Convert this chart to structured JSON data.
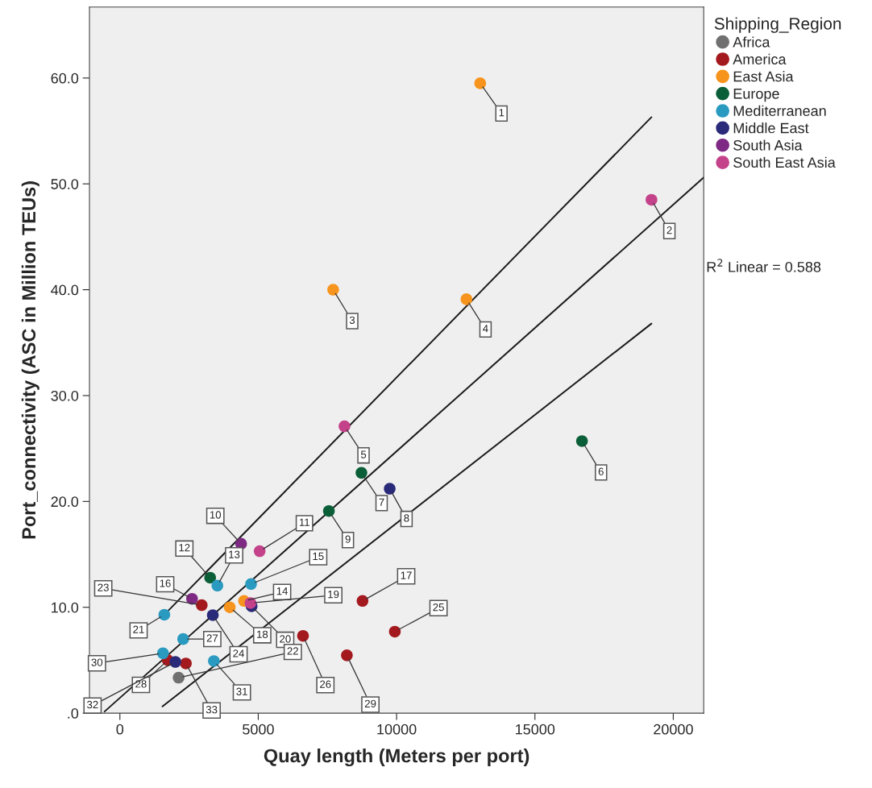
{
  "chart_data": {
    "type": "scatter",
    "xlabel": "Quay length (Meters per port)",
    "ylabel": "Port_connectivity (ASC in Million TEUs)",
    "legend_title": "Shipping_Region",
    "xlim": [
      -1100,
      21100
    ],
    "xticks": [
      0,
      5000,
      10000,
      15000,
      20000
    ],
    "ylim": [
      0,
      66.7
    ],
    "yticks": [
      {
        "value": 0,
        "label": ".0"
      },
      {
        "value": 10,
        "label": "10.0"
      },
      {
        "value": 20,
        "label": "20.0"
      },
      {
        "value": 30,
        "label": "30.0"
      },
      {
        "value": 40,
        "label": "40.0"
      },
      {
        "value": 50,
        "label": "50.0"
      },
      {
        "value": 60,
        "label": "60.0"
      }
    ],
    "grid": false,
    "legend": "right",
    "marker": "circle",
    "series": [
      {
        "name": "Africa",
        "color": "#707070",
        "x": [
          2122
        ],
        "values": [
          3.35
        ]
      },
      {
        "name": "America",
        "color": "#a3191e",
        "x": [
          8769,
          2958,
          9937,
          6618,
          1732,
          8204,
          2385
        ],
        "values": [
          10.6,
          10.2,
          7.7,
          7.3,
          5.0,
          5.46,
          4.69
        ]
      },
      {
        "name": "East Asia",
        "color": "#f7941d",
        "x": [
          13022,
          7708,
          12526,
          4487,
          3971
        ],
        "values": [
          59.5,
          40.0,
          39.1,
          10.6,
          10.0
        ]
      },
      {
        "name": "Europe",
        "color": "#0a5f38",
        "x": [
          16701,
          8730,
          7553,
          3261
        ],
        "values": [
          25.7,
          22.7,
          19.1,
          12.8
        ]
      },
      {
        "name": "Mediterranean",
        "color": "#2a9ac0",
        "x": [
          3523,
          4740,
          1606,
          2287,
          1557,
          3397
        ],
        "values": [
          12.05,
          12.2,
          9.3,
          7.0,
          5.66,
          4.92
        ]
      },
      {
        "name": "Middle East",
        "color": "#2a2a7a",
        "x": [
          9752,
          4760,
          3358,
          2005
        ],
        "values": [
          21.2,
          10.1,
          9.26,
          4.84
        ]
      },
      {
        "name": "South Asia",
        "color": "#7e2a84",
        "x": [
          4380,
          2608
        ],
        "values": [
          16.0,
          10.8
        ]
      },
      {
        "name": "South East Asia",
        "color": "#c4428a",
        "x": [
          19212,
          8117,
          5051,
          4720
        ],
        "values": [
          48.5,
          27.1,
          15.3,
          10.4
        ]
      },
      {
        "type": "line",
        "marker": "none",
        "color": "#1a1a1a",
        "x": [
          1606,
          19212
        ],
        "values": [
          9.3,
          56.3
        ]
      },
      {
        "type": "line",
        "marker": "none",
        "color": "#1a1a1a",
        "x": [
          -555,
          21100
        ],
        "values": [
          0.15,
          50.6
        ]
      },
      {
        "type": "line",
        "marker": "none",
        "color": "#1a1a1a",
        "x": [
          1538,
          19212
        ],
        "values": [
          0.63,
          36.8
        ]
      }
    ],
    "annotations": [
      {
        "text": "1",
        "x": 13022,
        "y": 59.5
      },
      {
        "text": "2",
        "x": 19212,
        "y": 48.5
      },
      {
        "text": "3",
        "x": 7708,
        "y": 40.0
      },
      {
        "text": "4",
        "x": 12526,
        "y": 39.1
      },
      {
        "text": "5",
        "x": 8117,
        "y": 27.1
      },
      {
        "text": "6",
        "x": 16701,
        "y": 25.7
      },
      {
        "text": "7",
        "x": 8730,
        "y": 22.7
      },
      {
        "text": "8",
        "x": 9752,
        "y": 21.2
      },
      {
        "text": "9",
        "x": 7553,
        "y": 19.1
      },
      {
        "text": "10",
        "x": 4380,
        "y": 16.0
      },
      {
        "text": "11",
        "x": 5051,
        "y": 15.3
      },
      {
        "text": "12",
        "x": 3261,
        "y": 12.8
      },
      {
        "text": "13",
        "x": 3523,
        "y": 12.05
      },
      {
        "text": "14",
        "x": 4487,
        "y": 10.6
      },
      {
        "text": "15",
        "x": 4740,
        "y": 12.2
      },
      {
        "text": "16",
        "x": 2608,
        "y": 10.8
      },
      {
        "text": "17",
        "x": 8769,
        "y": 10.6
      },
      {
        "text": "18",
        "x": 3971,
        "y": 10.0
      },
      {
        "text": "19",
        "x": 4720,
        "y": 10.4
      },
      {
        "text": "20",
        "x": 4760,
        "y": 10.1
      },
      {
        "text": "21",
        "x": 1606,
        "y": 9.3
      },
      {
        "text": "22",
        "x": 2122,
        "y": 3.35
      },
      {
        "text": "23",
        "x": 2958,
        "y": 10.2
      },
      {
        "text": "24",
        "x": 3358,
        "y": 9.26
      },
      {
        "text": "25",
        "x": 9937,
        "y": 7.7
      },
      {
        "text": "26",
        "x": 6618,
        "y": 7.3
      },
      {
        "text": "27",
        "x": 2287,
        "y": 7.0
      },
      {
        "text": "28",
        "x": 1732,
        "y": 5.0
      },
      {
        "text": "29",
        "x": 8204,
        "y": 5.46
      },
      {
        "text": "30",
        "x": 1557,
        "y": 5.66
      },
      {
        "text": "31",
        "x": 3397,
        "y": 4.92
      },
      {
        "text": "32",
        "x": 2005,
        "y": 4.84
      },
      {
        "text": "33",
        "x": 2385,
        "y": 4.69
      },
      "R$^{2}$ Linear = 0.588"
    ]
  }
}
